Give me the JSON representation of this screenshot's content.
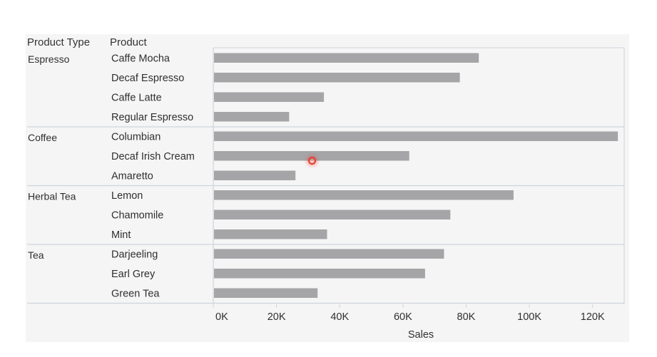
{
  "headers": {
    "product_type": "Product Type",
    "product": "Product"
  },
  "colors": {
    "bar": "#a5a5a7",
    "divider": "#cfd3dc",
    "axis": "#cfd3dc",
    "text": "#2f2f2f"
  },
  "chart_data": {
    "type": "bar",
    "orientation": "horizontal",
    "xlabel": "Sales",
    "xlim": [
      0,
      130000
    ],
    "xticks": [
      0,
      20000,
      40000,
      60000,
      80000,
      100000,
      120000
    ],
    "xtick_labels": [
      "0K",
      "20K",
      "40K",
      "60K",
      "80K",
      "100K",
      "120K"
    ],
    "grid": false,
    "groups": [
      {
        "name": "Espresso",
        "items": [
          {
            "product": "Caffe Mocha",
            "value": 84000
          },
          {
            "product": "Decaf Espresso",
            "value": 78000
          },
          {
            "product": "Caffe Latte",
            "value": 35000
          },
          {
            "product": "Regular Espresso",
            "value": 24000
          }
        ]
      },
      {
        "name": "Coffee",
        "items": [
          {
            "product": "Columbian",
            "value": 128000
          },
          {
            "product": "Decaf Irish Cream",
            "value": 62000
          },
          {
            "product": "Amaretto",
            "value": 26000
          }
        ]
      },
      {
        "name": "Herbal Tea",
        "items": [
          {
            "product": "Lemon",
            "value": 95000
          },
          {
            "product": "Chamomile",
            "value": 75000
          },
          {
            "product": "Mint",
            "value": 36000
          }
        ]
      },
      {
        "name": "Tea",
        "items": [
          {
            "product": "Darjeeling",
            "value": 73000
          },
          {
            "product": "Earl Grey",
            "value": 67000
          },
          {
            "product": "Green Tea",
            "value": 33000
          }
        ]
      }
    ]
  }
}
